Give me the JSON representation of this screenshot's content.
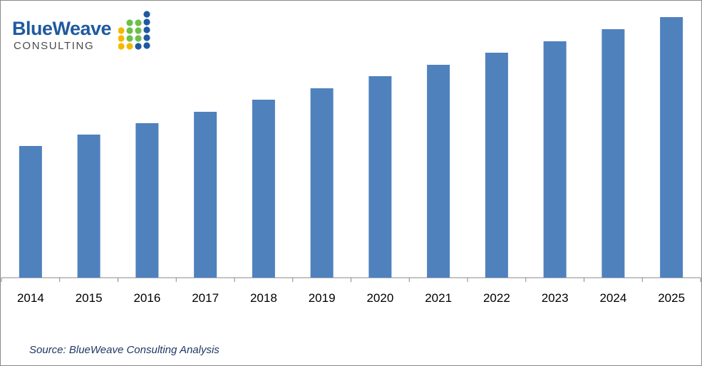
{
  "logo": {
    "name": "BlueWeave",
    "sub": "CONSULTING",
    "colors": {
      "blue": "#1f5aa0",
      "green": "#6dbf4b",
      "yellow": "#f5b800"
    }
  },
  "chart_data": {
    "type": "bar",
    "categories": [
      "2014",
      "2015",
      "2016",
      "2017",
      "2018",
      "2019",
      "2020",
      "2021",
      "2022",
      "2023",
      "2024",
      "2025"
    ],
    "values": [
      185,
      201,
      217,
      233,
      250,
      266,
      283,
      299,
      316,
      332,
      349,
      366
    ],
    "ylim": [
      0,
      366
    ],
    "bar_color": "#4f81bd",
    "axis_color": "#888888",
    "grid": false,
    "legend": "none"
  },
  "source": "Source: BlueWeave Consulting Analysis"
}
